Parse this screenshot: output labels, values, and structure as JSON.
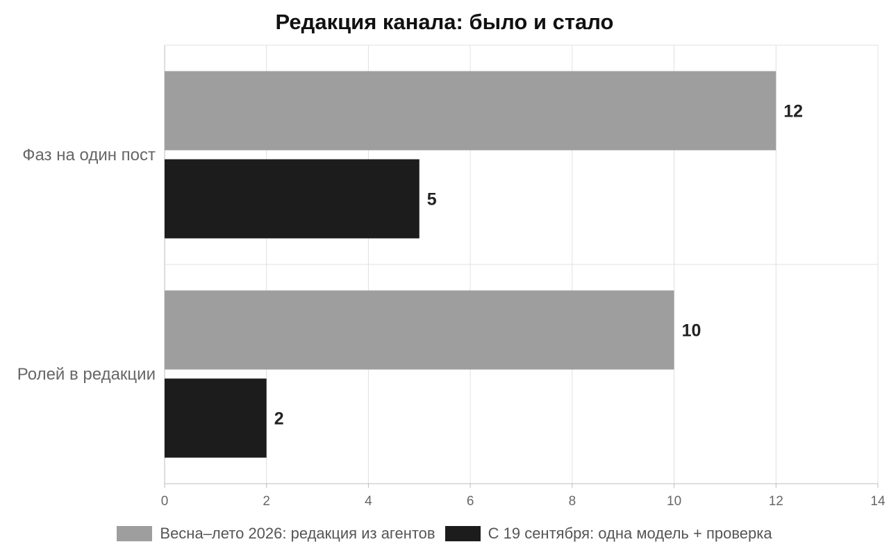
{
  "chart_data": {
    "type": "bar",
    "orientation": "horizontal",
    "title": "Редакция канала: было и стало",
    "categories": [
      "Фаз на один пост",
      "Ролей в редакции"
    ],
    "series": [
      {
        "name": "Весна–лето 2026: редакция из агентов",
        "values": [
          12,
          10
        ],
        "color": "#9e9e9e"
      },
      {
        "name": "С 19 сентября: одна модель + проверка",
        "values": [
          5,
          2
        ],
        "color": "#1c1c1c"
      }
    ],
    "xlim": [
      0,
      14
    ],
    "xticks": [
      "0",
      "2",
      "4",
      "6",
      "8",
      "10",
      "12",
      "14"
    ],
    "grid": true,
    "legend_position": "bottom",
    "data_labels": true
  }
}
